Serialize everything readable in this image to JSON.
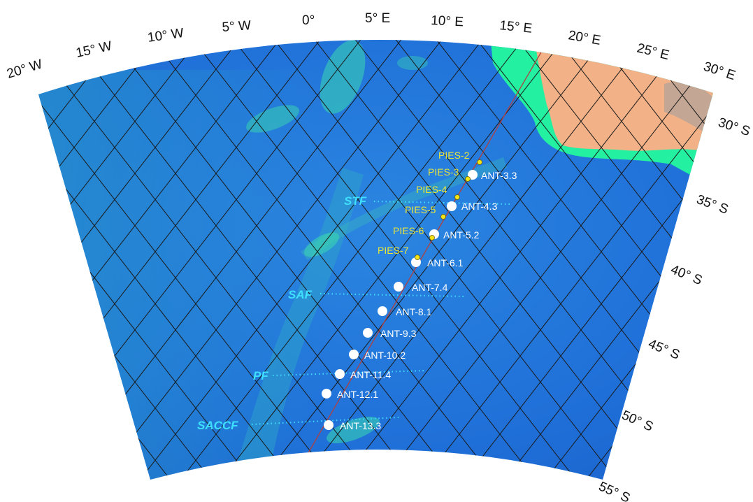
{
  "map": {
    "colors": {
      "ocean": "#1f6fd8",
      "ocean_shallow": "#2a9bd6",
      "shelf": "#23f0a0",
      "land": "#f2b187",
      "grid": "#1a1a1a",
      "transect": "#b04040",
      "station": "#ffffff",
      "pies": "#f3e418",
      "front": "#3fe0ff"
    },
    "longitude_labels": [
      "20° W",
      "15° W",
      "10° W",
      "5° W",
      "0°",
      "5° E",
      "10° E",
      "15° E",
      "20° E",
      "25° E",
      "30° E"
    ],
    "latitude_labels": [
      "30° S",
      "35° S",
      "40° S",
      "45° S",
      "50° S",
      "55° S"
    ],
    "stations": [
      {
        "name": "ANT-3.3"
      },
      {
        "name": "ANT-4.3"
      },
      {
        "name": "ANT-5.2"
      },
      {
        "name": "ANT-6.1"
      },
      {
        "name": "ANT-7.4"
      },
      {
        "name": "ANT-8.1"
      },
      {
        "name": "ANT-9.3"
      },
      {
        "name": "ANT-10.2"
      },
      {
        "name": "ANT-11.4"
      },
      {
        "name": "ANT-12.1"
      },
      {
        "name": "ANT-13.3"
      }
    ],
    "pies": [
      {
        "name": "PIES-2"
      },
      {
        "name": "PIES-3"
      },
      {
        "name": "PIES-4"
      },
      {
        "name": "PIES-5"
      },
      {
        "name": "PIES-6"
      },
      {
        "name": "PIES-7"
      }
    ],
    "fronts": [
      {
        "name": "STF"
      },
      {
        "name": "SAF"
      },
      {
        "name": "PF"
      },
      {
        "name": "SACCF"
      }
    ]
  }
}
